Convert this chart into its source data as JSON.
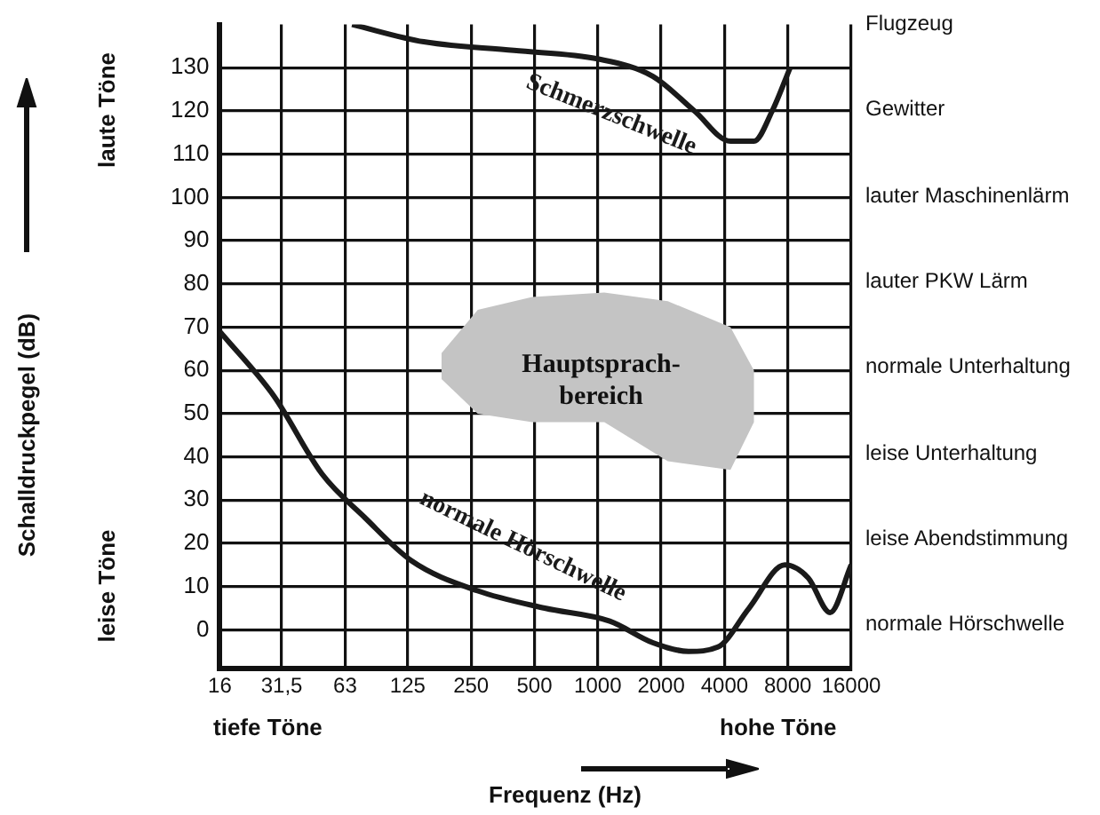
{
  "chart_data": {
    "type": "line",
    "xlabel": "Frequenz (Hz)",
    "log": "x",
    "xlim": [
      16,
      16000
    ],
    "xticks": [
      16,
      {
        "value": 31.5,
        "label": "31,5"
      },
      63,
      125,
      250,
      500,
      1000,
      2000,
      4000,
      8000,
      16000
    ],
    "ylim": [
      -9,
      140
    ],
    "yticks": [
      0,
      10,
      20,
      30,
      40,
      50,
      60,
      70,
      80,
      90,
      100,
      110,
      120,
      130
    ],
    "grid": true,
    "legend": false,
    "marker": "none",
    "line_style": "solid",
    "series": [
      {
        "name": "Schmerzschwelle",
        "color": "#1a1a1a",
        "x": [
          68,
          149,
          400,
          1010,
          1830,
          2880,
          4270,
          5520,
          6740,
          8200
        ],
        "values": [
          140,
          136,
          134,
          132,
          128,
          120,
          113,
          113,
          120,
          130
        ]
      },
      {
        "name": "normale Hörschwelle",
        "color": "#1a1a1a",
        "x": [
          16,
          29,
          49,
          78,
          130,
          269,
          560,
          1140,
          1830,
          2700,
          3720,
          5230,
          7740,
          10000,
          12700,
          16000
        ],
        "values": [
          69,
          54,
          36,
          26,
          16,
          9,
          5,
          2,
          -3,
          -5,
          -4,
          5,
          15,
          12,
          4,
          15
        ]
      },
      {
        "name": "Hauptsprach-bereich",
        "type": "area",
        "color": "#c4c4c4",
        "x": [
          181,
          269,
          488,
          1074,
          2150,
          4270,
          5520,
          5520,
          4270,
          2150,
          1074,
          488,
          269,
          181
        ],
        "values": [
          64,
          74,
          77,
          78,
          76,
          70,
          60,
          48,
          37,
          39,
          48,
          48,
          50,
          58
        ]
      }
    ],
    "annotations": [
      "Schalldruckpegel (dB)",
      "laute Töne",
      "leise Töne",
      "tiefe Töne",
      "hohe Töne",
      "Flugzeug",
      "Gewitter",
      "lauter Maschinenlärm",
      "lauter PKW Lärm",
      "normale Unterhaltung",
      "leise Unterhaltung",
      "leise Abendstimmung",
      "normale Hörschwelle"
    ]
  }
}
